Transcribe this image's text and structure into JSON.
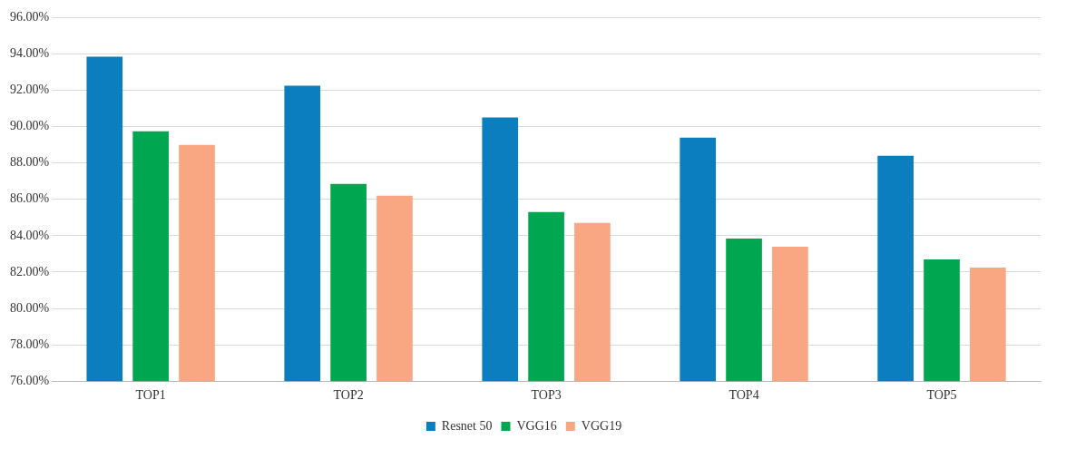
{
  "chart_data": {
    "type": "bar",
    "categories": [
      "TOP1",
      "TOP2",
      "TOP3",
      "TOP4",
      "TOP5"
    ],
    "series": [
      {
        "name": "Resnet 50",
        "color": "#0a7ebf",
        "values": [
          93.85,
          92.25,
          90.5,
          89.4,
          88.4
        ]
      },
      {
        "name": "VGG16",
        "color": "#00a650",
        "values": [
          89.75,
          86.85,
          85.3,
          83.85,
          82.7
        ]
      },
      {
        "name": "VGG19",
        "color": "#f9a682",
        "values": [
          89.0,
          86.2,
          84.7,
          83.4,
          82.25
        ]
      }
    ],
    "ylim": [
      76,
      96
    ],
    "yticks": [
      {
        "value": 76,
        "label": "76.00%"
      },
      {
        "value": 78,
        "label": "78.00%"
      },
      {
        "value": 80,
        "label": "80.00%"
      },
      {
        "value": 82,
        "label": "82.00%"
      },
      {
        "value": 84,
        "label": "84.00%"
      },
      {
        "value": 86,
        "label": "86.00%"
      },
      {
        "value": 88,
        "label": "88.00%"
      },
      {
        "value": 90,
        "label": "90.00%"
      },
      {
        "value": 92,
        "label": "92.00%"
      },
      {
        "value": 94,
        "label": "94.00%"
      },
      {
        "value": 96,
        "label": "96.00%"
      }
    ],
    "grid": "y",
    "legend": "bottom"
  }
}
